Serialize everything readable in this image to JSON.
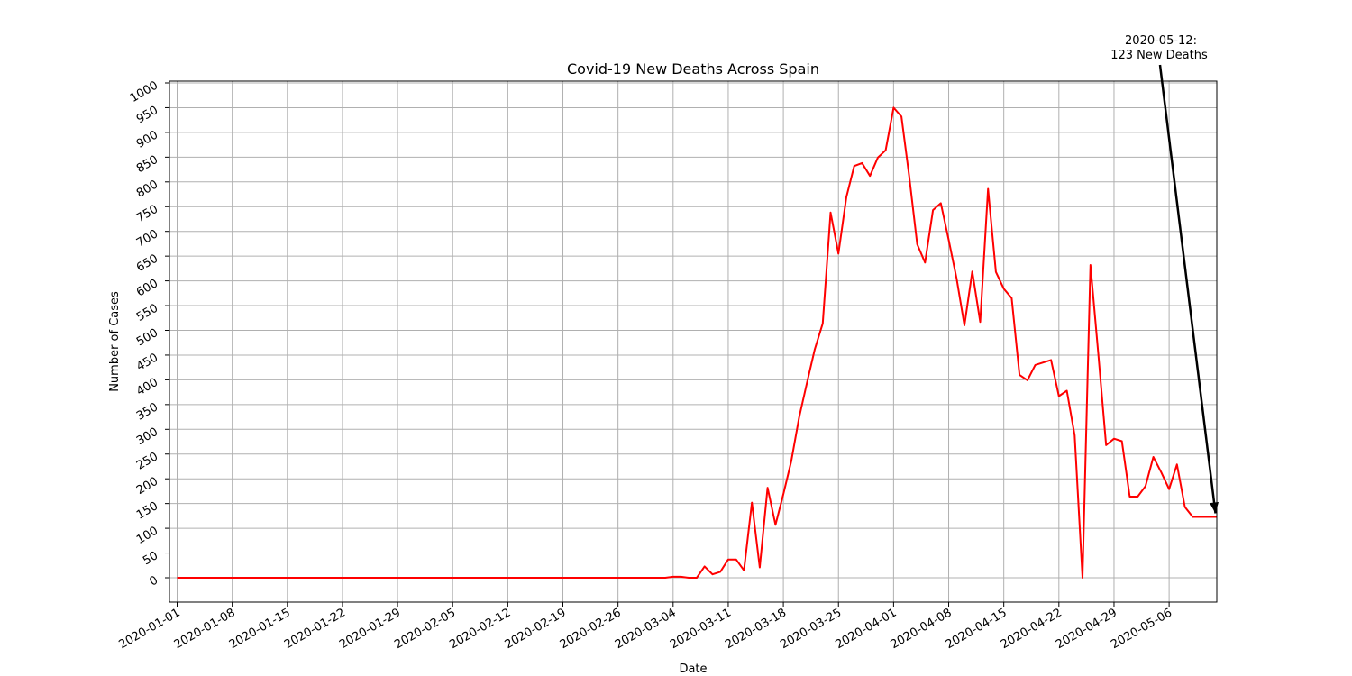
{
  "chart_data": {
    "type": "line",
    "title": "Covid-19 New Deaths Across Spain",
    "xlabel": "Date",
    "ylabel": "Number of Cases",
    "x_start": "2020-01-01",
    "x_end": "2020-05-12",
    "xlim": [
      "2020-01-01",
      "2020-05-12"
    ],
    "ylim": [
      -50,
      1000
    ],
    "xticks": [
      "2020-01-01",
      "2020-01-08",
      "2020-01-15",
      "2020-01-22",
      "2020-01-29",
      "2020-02-05",
      "2020-02-12",
      "2020-02-19",
      "2020-02-26",
      "2020-03-04",
      "2020-03-11",
      "2020-03-18",
      "2020-03-25",
      "2020-04-01",
      "2020-04-08",
      "2020-04-15",
      "2020-04-22",
      "2020-04-29",
      "2020-05-06"
    ],
    "yticks": [
      0,
      50,
      100,
      150,
      200,
      250,
      300,
      350,
      400,
      450,
      500,
      550,
      600,
      650,
      700,
      750,
      800,
      850,
      900,
      950,
      1000
    ],
    "grid": true,
    "line_color": "#ff0000",
    "series": [
      {
        "x": [
          "2020-03-02",
          "2020-03-03",
          "2020-03-04",
          "2020-03-05",
          "2020-03-06",
          "2020-03-07",
          "2020-03-08",
          "2020-03-09",
          "2020-03-10",
          "2020-03-11",
          "2020-03-12",
          "2020-03-13",
          "2020-03-14",
          "2020-03-15",
          "2020-03-16",
          "2020-03-17",
          "2020-03-18",
          "2020-03-19",
          "2020-03-20",
          "2020-03-21",
          "2020-03-22",
          "2020-03-23",
          "2020-03-24",
          "2020-03-25",
          "2020-03-26",
          "2020-03-27",
          "2020-03-28",
          "2020-03-29",
          "2020-03-30",
          "2020-03-31",
          "2020-04-01",
          "2020-04-02",
          "2020-04-03",
          "2020-04-04",
          "2020-04-05",
          "2020-04-06",
          "2020-04-07",
          "2020-04-08",
          "2020-04-09",
          "2020-04-10",
          "2020-04-11",
          "2020-04-12",
          "2020-04-13",
          "2020-04-14",
          "2020-04-15",
          "2020-04-16",
          "2020-04-17",
          "2020-04-18",
          "2020-04-19",
          "2020-04-20",
          "2020-04-21",
          "2020-04-22",
          "2020-04-23",
          "2020-04-24",
          "2020-04-25",
          "2020-04-26",
          "2020-04-27",
          "2020-04-28",
          "2020-04-29",
          "2020-04-30",
          "2020-05-01",
          "2020-05-02",
          "2020-05-03",
          "2020-05-04",
          "2020-05-05",
          "2020-05-06",
          "2020-05-07",
          "2020-05-08",
          "2020-05-09",
          "2020-05-10",
          "2020-05-11",
          "2020-05-12"
        ],
        "values": [
          0,
          0,
          2,
          2,
          0,
          0,
          23,
          7,
          12,
          37,
          37,
          15,
          152,
          21,
          182,
          107,
          169,
          235,
          324,
          394,
          462,
          514,
          738,
          655,
          769,
          832,
          838,
          812,
          849,
          864,
          950,
          932,
          809,
          674,
          637,
          743,
          757,
          683,
          605,
          510,
          619,
          517,
          786,
          618,
          584,
          565,
          410,
          399,
          430,
          435,
          440,
          367,
          378,
          288,
          0,
          632,
          453,
          268,
          281,
          276,
          164,
          164,
          185,
          244,
          213,
          179,
          229,
          143,
          123,
          123,
          123,
          123
        ]
      }
    ],
    "annotation": {
      "line1": "2020-05-12:",
      "line2": "123 New Deaths",
      "target_date": "2020-05-12",
      "target_value": 123
    }
  }
}
